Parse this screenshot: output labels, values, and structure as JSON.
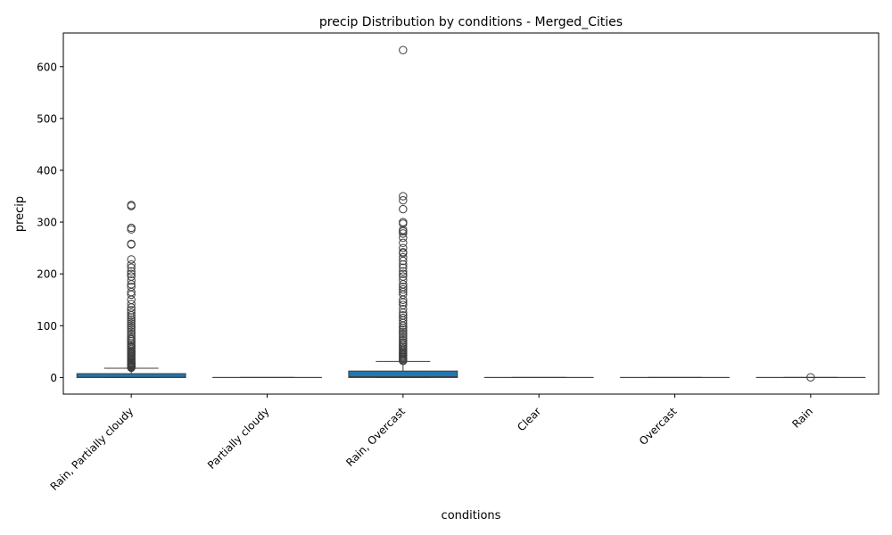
{
  "chart_data": {
    "type": "box",
    "title": "precip Distribution by conditions - Merged_Cities",
    "xlabel": "conditions",
    "ylabel": "precip",
    "ylim": [
      -32,
      665
    ],
    "yticks": [
      0,
      100,
      200,
      300,
      400,
      500,
      600
    ],
    "grid": false,
    "box_color": "#1f77b4",
    "edge_color": "#3d3d3d",
    "categories": [
      "Rain, Partially cloudy",
      "Partially cloudy",
      "Rain, Overcast",
      "Clear",
      "Overcast",
      "Rain"
    ],
    "boxes": [
      {
        "category": "Rain, Partially cloudy",
        "whisker_low": 0,
        "q1": 0,
        "median": 0.5,
        "q3": 7.5,
        "whisker_high": 18,
        "outliers": [
          19,
          20,
          21,
          22,
          23,
          24,
          25,
          26,
          27,
          28,
          29,
          30,
          32,
          34,
          36,
          38,
          40,
          42,
          44,
          46,
          48,
          50,
          52,
          55,
          58,
          60,
          63,
          66,
          70,
          73,
          76,
          80,
          84,
          88,
          92,
          96,
          100,
          104,
          108,
          112,
          116,
          120,
          125,
          130,
          135,
          142,
          150,
          160,
          165,
          175,
          180,
          187,
          195,
          200,
          205,
          212,
          218,
          228,
          257,
          258,
          286,
          289,
          331,
          333
        ]
      },
      {
        "category": "Partially cloudy",
        "whisker_low": 0,
        "q1": 0,
        "median": 0,
        "q3": 0,
        "whisker_high": 0,
        "outliers": []
      },
      {
        "category": "Rain, Overcast",
        "whisker_low": 0,
        "q1": 0,
        "median": 1.5,
        "q3": 12.5,
        "whisker_high": 31,
        "outliers": [
          32,
          34,
          36,
          38,
          40,
          42,
          44,
          46,
          48,
          50,
          53,
          56,
          59,
          62,
          65,
          68,
          72,
          76,
          80,
          84,
          88,
          92,
          96,
          100,
          105,
          110,
          115,
          120,
          125,
          132,
          140,
          145,
          150,
          160,
          165,
          170,
          175,
          180,
          188,
          195,
          200,
          205,
          212,
          218,
          225,
          232,
          240,
          242,
          250,
          260,
          270,
          278,
          282,
          285,
          297,
          300,
          325,
          342,
          350,
          632
        ]
      },
      {
        "category": "Clear",
        "whisker_low": 0,
        "q1": 0,
        "median": 0,
        "q3": 0,
        "whisker_high": 0,
        "outliers": []
      },
      {
        "category": "Overcast",
        "whisker_low": 0,
        "q1": 0,
        "median": 0,
        "q3": 0,
        "whisker_high": 0,
        "outliers": []
      },
      {
        "category": "Rain",
        "whisker_low": 0,
        "q1": 0,
        "median": 0,
        "q3": 0,
        "whisker_high": 0,
        "outliers": [
          0.4
        ]
      }
    ]
  }
}
